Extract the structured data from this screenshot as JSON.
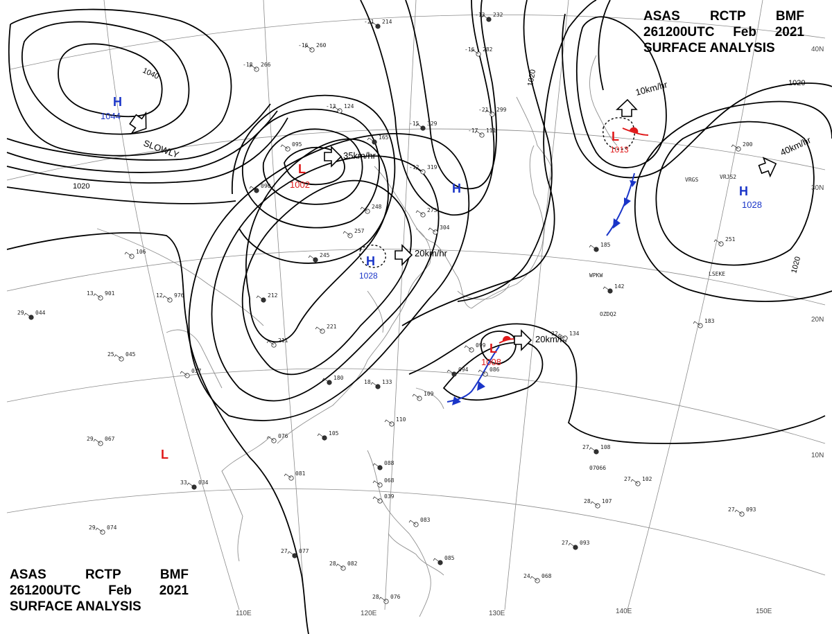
{
  "header": {
    "line1": [
      "ASAS",
      "RCTP",
      "BMF"
    ],
    "line2": [
      "261200UTC",
      "Feb",
      "2021"
    ],
    "line3": "SURFACE ANALYSIS"
  },
  "footer": {
    "line1": [
      "ASAS",
      "RCTP",
      "BMF"
    ],
    "line2": [
      "261200UTC",
      "Feb",
      "2021"
    ],
    "line3": "SURFACE ANALYSIS"
  },
  "grid": {
    "longitudes": [
      "110E",
      "120E",
      "130E",
      "140E",
      "150E"
    ],
    "latitudes": [
      "40N",
      "30N",
      "20N",
      "10N"
    ]
  },
  "isobar_labels": [
    "1040",
    "1020",
    "1020",
    "1020"
  ],
  "systems": [
    {
      "type": "H",
      "value": "1044",
      "color": "#1a35c8"
    },
    {
      "type": "L",
      "value": "1002",
      "color": "#e0191a"
    },
    {
      "type": "H",
      "value": "",
      "color": "#1a35c8"
    },
    {
      "type": "H",
      "value": "1028",
      "color": "#1a35c8"
    },
    {
      "type": "L",
      "value": "1008",
      "color": "#e0191a"
    },
    {
      "type": "L",
      "value": "1013",
      "color": "#e0191a"
    },
    {
      "type": "H",
      "value": "1028",
      "color": "#1a35c8"
    },
    {
      "type": "L",
      "value": "",
      "color": "#e0191a"
    }
  ],
  "motions": [
    {
      "text": "SLOWLY"
    },
    {
      "text": "35km/hr"
    },
    {
      "text": "20km/hr"
    },
    {
      "text": "20km/hr"
    },
    {
      "text": "10km/hr"
    },
    {
      "text": "40km/hr"
    }
  ],
  "stations": [
    {
      "t": "-21",
      "p": "214"
    },
    {
      "t": "-16",
      "p": "260"
    },
    {
      "t": "-18",
      "p": "266"
    },
    {
      "t": "-13",
      "p": "232"
    },
    {
      "t": "-16",
      "p": "282"
    },
    {
      "t": "-13",
      "p": "124"
    },
    {
      "t": "-15",
      "p": "329"
    },
    {
      "t": "-21",
      "p": "299"
    },
    {
      "t": "-12",
      "p": "319"
    },
    {
      "t": "",
      "p": "165"
    },
    {
      "t": "-17",
      "p": "111"
    },
    {
      "t": "",
      "p": "095"
    },
    {
      "t": "",
      "p": "090"
    },
    {
      "t": "",
      "p": "248"
    },
    {
      "t": "",
      "p": "257"
    },
    {
      "t": "",
      "p": "245"
    },
    {
      "t": "",
      "p": "273"
    },
    {
      "t": "",
      "p": "304"
    },
    {
      "t": "",
      "p": "185"
    },
    {
      "t": "",
      "p": "251"
    },
    {
      "t": "",
      "p": "200"
    },
    {
      "t": "",
      "p": "142"
    },
    {
      "t": "",
      "p": "183"
    },
    {
      "t": "22",
      "p": "134"
    },
    {
      "t": "",
      "p": "094"
    },
    {
      "t": "",
      "p": "086"
    },
    {
      "t": "",
      "p": "099"
    },
    {
      "t": "18",
      "p": "133"
    },
    {
      "t": "",
      "p": "109"
    },
    {
      "t": "",
      "p": "110"
    },
    {
      "t": "",
      "p": "105"
    },
    {
      "t": "",
      "p": "076"
    },
    {
      "t": "",
      "p": "081"
    },
    {
      "t": "33",
      "p": "034"
    },
    {
      "t": "29",
      "p": "067"
    },
    {
      "t": "25",
      "p": "045"
    },
    {
      "t": "29",
      "p": "044"
    },
    {
      "t": "13",
      "p": "901"
    },
    {
      "t": "12",
      "p": "976"
    },
    {
      "t": "",
      "p": "212"
    },
    {
      "t": "",
      "p": "211"
    },
    {
      "t": "",
      "p": "221"
    },
    {
      "t": "",
      "p": "180"
    },
    {
      "t": "",
      "p": "037"
    },
    {
      "t": "",
      "p": "106"
    },
    {
      "t": "27",
      "p": "077"
    },
    {
      "t": "28",
      "p": "082"
    },
    {
      "t": "28",
      "p": "076"
    },
    {
      "t": "",
      "p": "085"
    },
    {
      "t": "",
      "p": "083"
    },
    {
      "t": "24",
      "p": "068"
    },
    {
      "t": "27",
      "p": "093"
    },
    {
      "t": "28",
      "p": "107"
    },
    {
      "t": "27",
      "p": "102"
    },
    {
      "t": "27",
      "p": "108"
    },
    {
      "t": "27",
      "p": "093"
    },
    {
      "t": "29",
      "p": "074"
    },
    {
      "t": "",
      "p": "088"
    },
    {
      "t": "",
      "p": "068"
    },
    {
      "t": "",
      "p": "039"
    }
  ],
  "ship_ids": [
    "WPKW",
    "OZDQ2",
    "LSEKE",
    "VRJS2",
    "VRGS",
    "07066"
  ],
  "colors": {
    "low": "#e0191a",
    "high": "#1a35c8",
    "isobar": "#000000",
    "grid": "#888888",
    "coast": "#9a9a9a"
  }
}
